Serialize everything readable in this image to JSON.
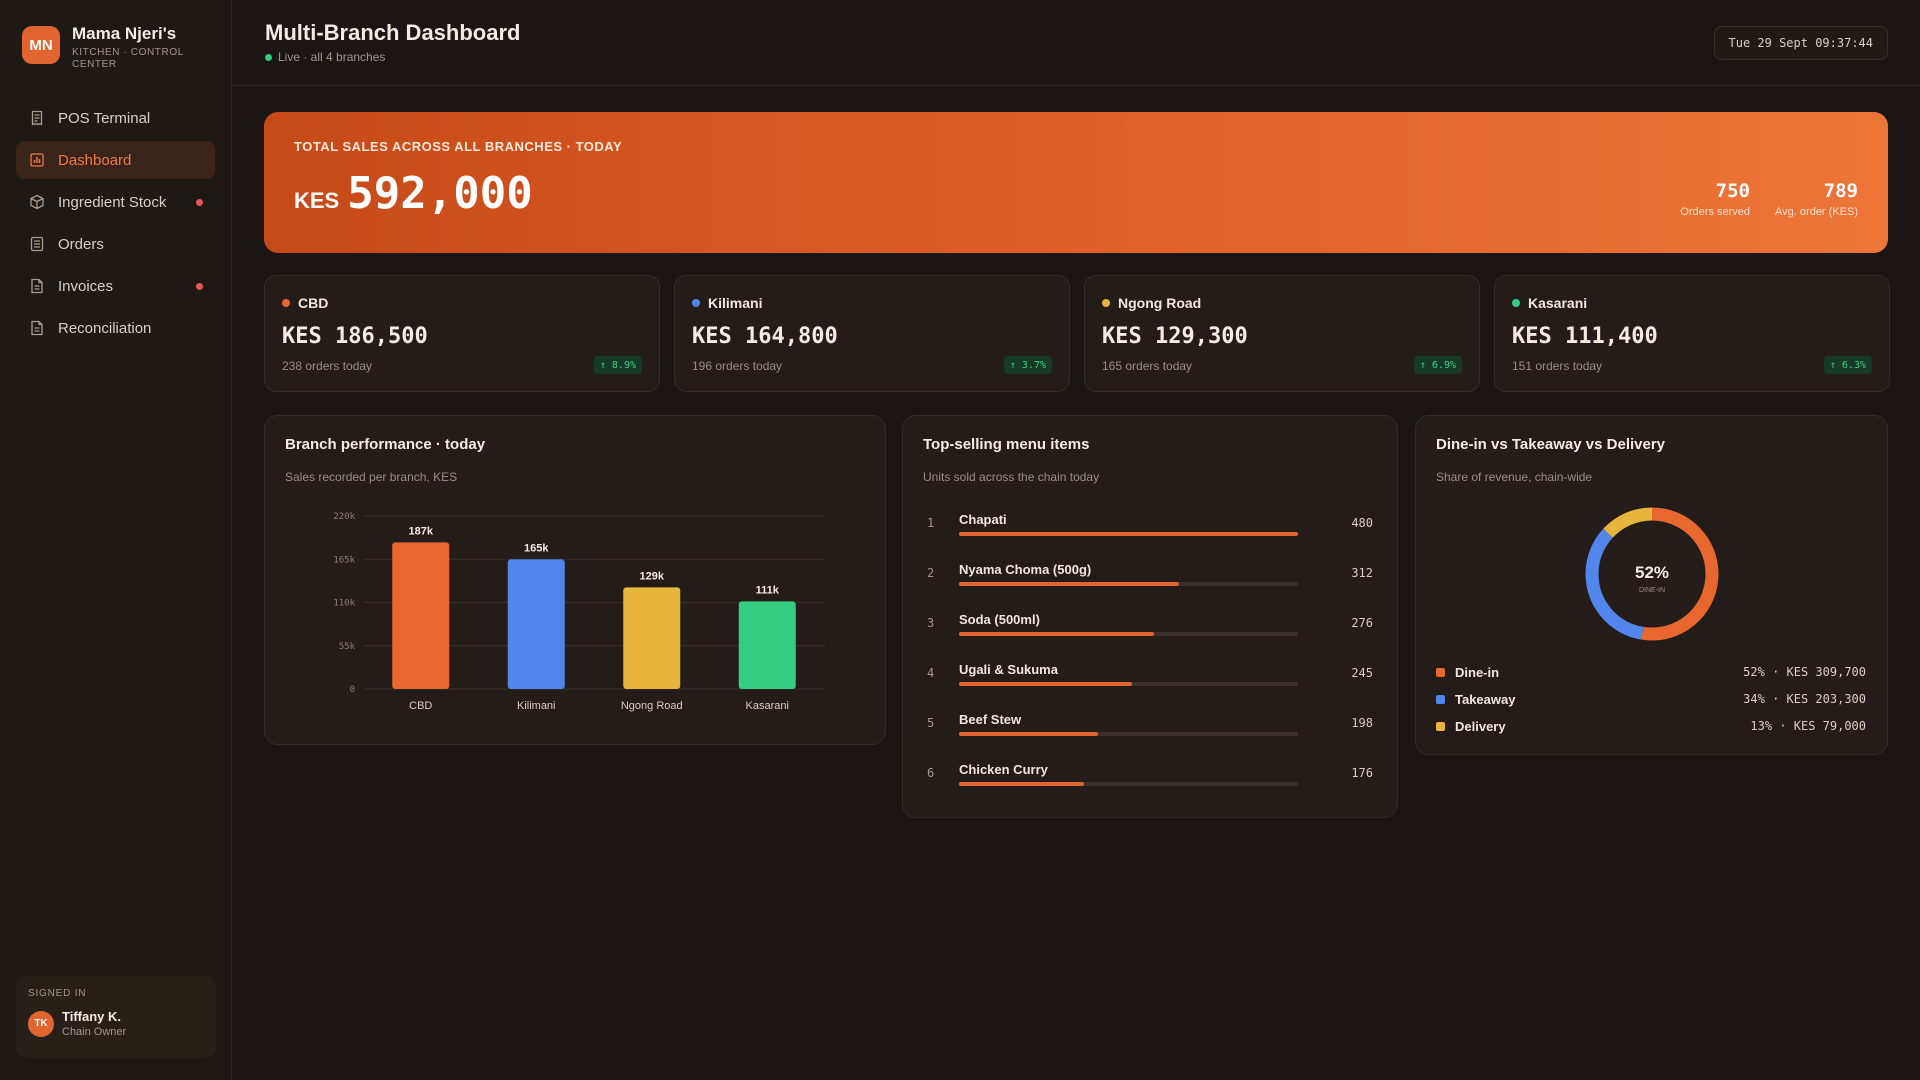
{
  "brand": {
    "logo": "MN",
    "name": "Mama Njeri's",
    "subtitle": "KITCHEN · CONTROL CENTER"
  },
  "nav": [
    {
      "label": "POS Terminal",
      "icon": "receipt-icon",
      "active": false,
      "badge": false
    },
    {
      "label": "Dashboard",
      "icon": "bar-chart-icon",
      "active": true,
      "badge": false
    },
    {
      "label": "Ingredient Stock",
      "icon": "box-icon",
      "active": false,
      "badge": true
    },
    {
      "label": "Orders",
      "icon": "list-icon",
      "active": false,
      "badge": false
    },
    {
      "label": "Invoices",
      "icon": "document-icon",
      "active": false,
      "badge": true
    },
    {
      "label": "Reconciliation",
      "icon": "document-icon",
      "active": false,
      "badge": false
    }
  ],
  "user": {
    "caption": "SIGNED IN",
    "initials": "TK",
    "name": "Tiffany K.",
    "role": "Chain Owner"
  },
  "header": {
    "title": "Multi-Branch Dashboard",
    "status": "Live · all 4 branches",
    "datetime": "Tue 29 Sept 09:37:44"
  },
  "hero": {
    "caption": "TOTAL SALES ACROSS ALL BRANCHES · TODAY",
    "currency": "KES",
    "total": "592,000",
    "orders_value": "750",
    "orders_label": "Orders served",
    "avg_value": "789",
    "avg_label": "Avg. order (KES)"
  },
  "branches": [
    {
      "name": "CBD",
      "sales": "KES 186,500",
      "orders": "238 orders today",
      "trend": "↑ 8.9%",
      "color": "#e8672f"
    },
    {
      "name": "Kilimani",
      "sales": "KES 164,800",
      "orders": "196 orders today",
      "trend": "↑ 3.7%",
      "color": "#5286ec"
    },
    {
      "name": "Ngong Road",
      "sales": "KES 129,300",
      "orders": "165 orders today",
      "trend": "↑ 6.9%",
      "color": "#e7b43c"
    },
    {
      "name": "Kasarani",
      "sales": "KES 111,400",
      "orders": "151 orders today",
      "trend": "↑ 6.3%",
      "color": "#35cd7f"
    }
  ],
  "performance": {
    "title": "Branch performance · today",
    "subtitle": "Sales recorded per branch, KES"
  },
  "top_items": {
    "title": "Top-selling menu items",
    "subtitle": "Units sold across the chain today",
    "items": [
      {
        "rank": "1",
        "name": "Chapati",
        "units": "480",
        "share": 1.0
      },
      {
        "rank": "2",
        "name": "Nyama Choma (500g)",
        "units": "312",
        "share": 0.65
      },
      {
        "rank": "3",
        "name": "Soda (500ml)",
        "units": "276",
        "share": 0.575
      },
      {
        "rank": "4",
        "name": "Ugali & Sukuma",
        "units": "245",
        "share": 0.51
      },
      {
        "rank": "5",
        "name": "Beef Stew",
        "units": "198",
        "share": 0.41
      },
      {
        "rank": "6",
        "name": "Chicken Curry",
        "units": "176",
        "share": 0.37
      }
    ]
  },
  "channels": {
    "title": "Dine-in vs Takeaway vs Delivery",
    "subtitle": "Share of revenue, chain-wide",
    "center_value": "52%",
    "center_label": "DINE-IN",
    "rows": [
      {
        "name": "Dine-in",
        "value": "52% · KES 309,700",
        "color": "#e8672f"
      },
      {
        "name": "Takeaway",
        "value": "34% · KES 203,300",
        "color": "#5286ec"
      },
      {
        "name": "Delivery",
        "value": "13% · KES 79,000",
        "color": "#e7b43c"
      }
    ]
  },
  "chart_data": [
    {
      "type": "bar",
      "categories": [
        "CBD",
        "Kilimani",
        "Ngong Road",
        "Kasarani"
      ],
      "values": [
        186500,
        164800,
        129300,
        111400
      ],
      "data_labels": [
        "187k",
        "165k",
        "129k",
        "111k"
      ],
      "colors": [
        "#e8672f",
        "#5286ec",
        "#e7b43c",
        "#35cd7f"
      ],
      "yticks": [
        "0",
        "55k",
        "110k",
        "165k",
        "220k"
      ],
      "ylim": [
        0,
        220000
      ],
      "grid": true,
      "title": "Branch performance · today",
      "subtitle": "Sales recorded per branch, KES"
    },
    {
      "type": "pie",
      "categories": [
        "Dine-in",
        "Takeaway",
        "Delivery"
      ],
      "values": [
        52,
        34,
        13
      ],
      "colors": [
        "#e8672f",
        "#5286ec",
        "#e7b43c"
      ],
      "title": "Dine-in vs Takeaway vs Delivery"
    }
  ]
}
